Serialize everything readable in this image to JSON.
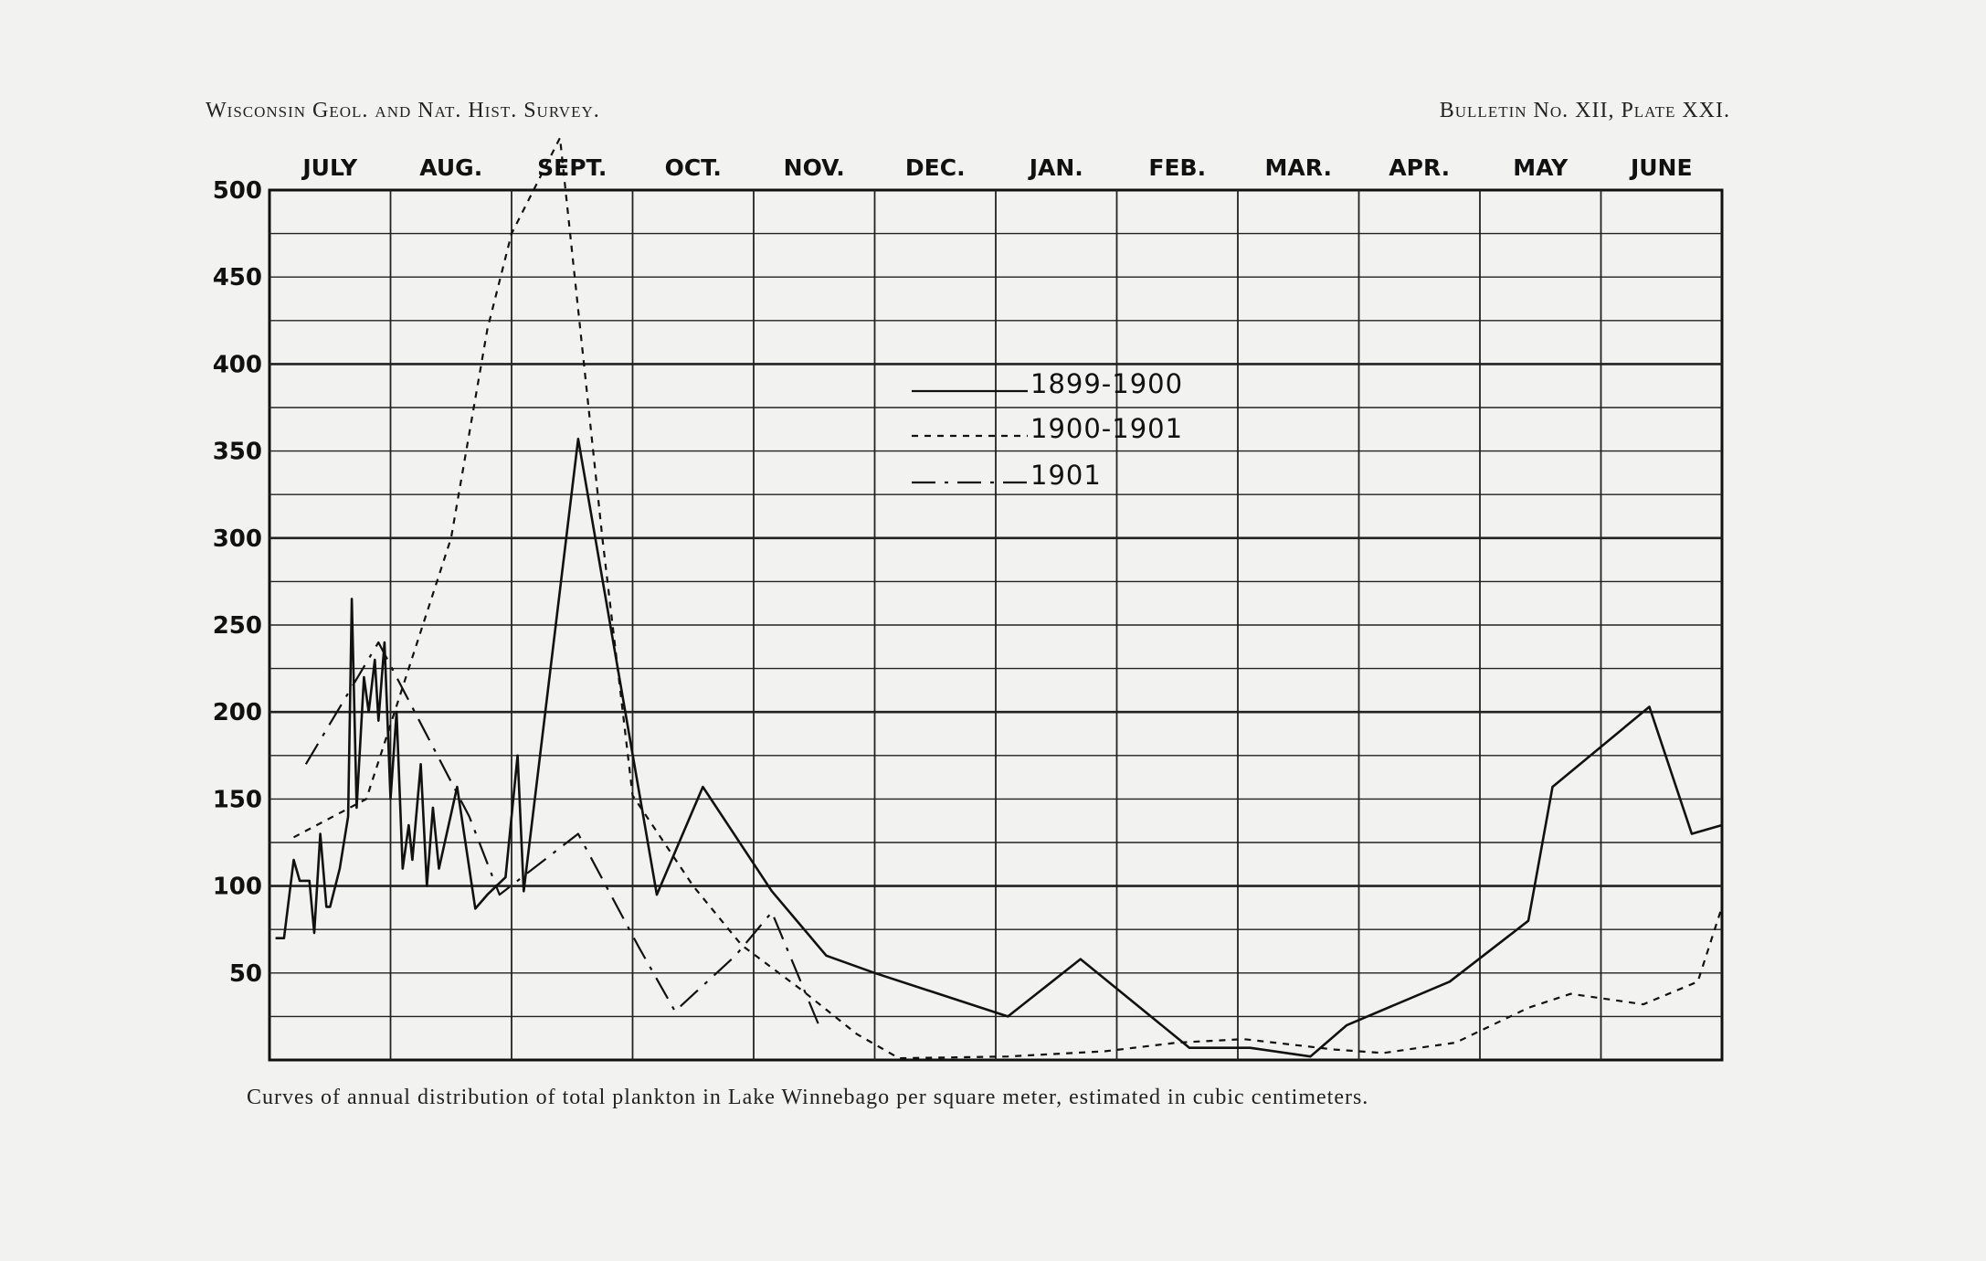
{
  "header": {
    "left": "Wisconsin Geol. and Nat. Hist. Survey.",
    "right": "Bulletin No. XII, Plate XXI."
  },
  "caption": "Curves of annual distribution of total plankton in Lake Winnebago per square meter, estimated in cubic centimeters.",
  "chart_data": {
    "type": "line",
    "categories": [
      "JULY",
      "AUG.",
      "SEPT.",
      "OCT.",
      "NOV.",
      "DEC.",
      "JAN.",
      "FEB.",
      "MAR.",
      "APR.",
      "MAY",
      "JUNE"
    ],
    "ylim": [
      0,
      500
    ],
    "yticks": [
      50,
      100,
      150,
      200,
      250,
      300,
      350,
      400,
      450,
      500
    ],
    "xlim": [
      0,
      12
    ],
    "grid": true,
    "legend_position": "upper-center",
    "series": [
      {
        "name": "1899-1900",
        "style": "solid",
        "points": [
          [
            0.05,
            70
          ],
          [
            0.12,
            70
          ],
          [
            0.2,
            115
          ],
          [
            0.25,
            103
          ],
          [
            0.33,
            103
          ],
          [
            0.37,
            73
          ],
          [
            0.42,
            130
          ],
          [
            0.47,
            88
          ],
          [
            0.5,
            88
          ],
          [
            0.58,
            110
          ],
          [
            0.65,
            140
          ],
          [
            0.68,
            265
          ],
          [
            0.72,
            145
          ],
          [
            0.78,
            220
          ],
          [
            0.82,
            200
          ],
          [
            0.87,
            230
          ],
          [
            0.9,
            195
          ],
          [
            0.95,
            240
          ],
          [
            1.0,
            150
          ],
          [
            1.05,
            200
          ],
          [
            1.1,
            110
          ],
          [
            1.15,
            135
          ],
          [
            1.18,
            115
          ],
          [
            1.25,
            170
          ],
          [
            1.3,
            100
          ],
          [
            1.35,
            145
          ],
          [
            1.4,
            110
          ],
          [
            1.55,
            157
          ],
          [
            1.7,
            87
          ],
          [
            1.8,
            95
          ],
          [
            1.95,
            105
          ],
          [
            2.05,
            175
          ],
          [
            2.1,
            97
          ],
          [
            2.55,
            357
          ],
          [
            3.2,
            95
          ],
          [
            3.58,
            157
          ],
          [
            4.15,
            97
          ],
          [
            4.6,
            60
          ],
          [
            5.0,
            50
          ],
          [
            6.1,
            25
          ],
          [
            6.7,
            58
          ],
          [
            7.6,
            7
          ],
          [
            8.1,
            7
          ],
          [
            8.6,
            2
          ],
          [
            8.9,
            20
          ],
          [
            9.75,
            45
          ],
          [
            10.4,
            80
          ],
          [
            10.6,
            157
          ],
          [
            11.4,
            203
          ],
          [
            11.75,
            130
          ],
          [
            12.0,
            135
          ]
        ]
      },
      {
        "name": "1900-1901",
        "style": "dotted",
        "points": [
          [
            0.2,
            128
          ],
          [
            0.8,
            150
          ],
          [
            1.5,
            300
          ],
          [
            1.8,
            420
          ],
          [
            2.0,
            475
          ],
          [
            2.4,
            530
          ],
          [
            2.75,
            300
          ],
          [
            3.0,
            152
          ],
          [
            3.5,
            100
          ],
          [
            3.9,
            66
          ],
          [
            4.4,
            40
          ],
          [
            4.85,
            15
          ],
          [
            5.2,
            1
          ],
          [
            6.1,
            2
          ],
          [
            6.9,
            5
          ],
          [
            7.5,
            10
          ],
          [
            8.05,
            12
          ],
          [
            8.3,
            10
          ],
          [
            8.8,
            6
          ],
          [
            9.2,
            4
          ],
          [
            9.8,
            10
          ],
          [
            10.4,
            30
          ],
          [
            10.75,
            38
          ],
          [
            11.35,
            32
          ],
          [
            11.8,
            45
          ],
          [
            12.0,
            88
          ]
        ]
      },
      {
        "name": "1901",
        "style": "dash-dot",
        "points": [
          [
            0.3,
            170
          ],
          [
            0.9,
            240
          ],
          [
            1.2,
            200
          ],
          [
            1.65,
            140
          ],
          [
            1.9,
            95
          ],
          [
            2.55,
            130
          ],
          [
            3.05,
            65
          ],
          [
            3.35,
            28
          ],
          [
            3.85,
            60
          ],
          [
            4.15,
            85
          ],
          [
            4.55,
            18
          ]
        ]
      }
    ]
  }
}
